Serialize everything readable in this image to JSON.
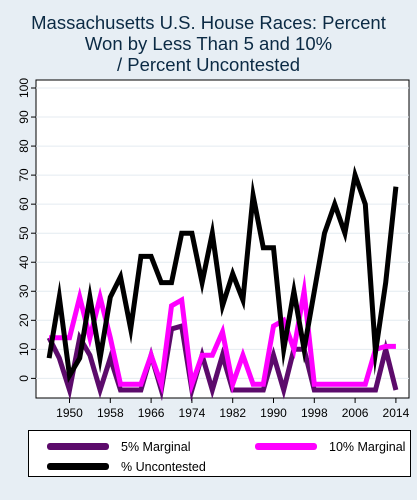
{
  "chart_data": {
    "type": "line",
    "title_lines": [
      "Massachusetts U.S. House Races: Percent",
      "Won by Less Than 5 and 10%",
      "/ Percent Uncontested"
    ],
    "xlabel": "",
    "ylabel": "",
    "x": [
      1946,
      1948,
      1950,
      1952,
      1954,
      1956,
      1958,
      1960,
      1962,
      1964,
      1966,
      1968,
      1970,
      1972,
      1974,
      1976,
      1978,
      1980,
      1982,
      1984,
      1986,
      1988,
      1990,
      1992,
      1994,
      1996,
      1998,
      2000,
      2002,
      2004,
      2006,
      2008,
      2010,
      2012,
      2014
    ],
    "x_ticks": [
      1950,
      1958,
      1966,
      1974,
      1982,
      1990,
      1998,
      2006,
      2014
    ],
    "y_ticks": [
      0,
      10,
      20,
      30,
      40,
      50,
      60,
      70,
      80,
      90,
      100
    ],
    "xlim": [
      1945,
      2015
    ],
    "ylim": [
      -4,
      100
    ],
    "grid": true,
    "legend_position": "bottom",
    "series": [
      {
        "name": "5% Marginal",
        "color": "#5c0b6b",
        "values": [
          14,
          7,
          -4,
          14,
          8,
          -4,
          7,
          -4,
          -4,
          -4,
          8,
          -4,
          17,
          18,
          -4,
          8,
          -4,
          8,
          -4,
          -4,
          -4,
          -4,
          8,
          -4,
          10,
          10,
          -4,
          -4,
          -4,
          -4,
          -4,
          -4,
          -4,
          10,
          -4
        ]
      },
      {
        "name": "10% Marginal",
        "color": "#ff00ff",
        "values": [
          14,
          14,
          14,
          28,
          14,
          28,
          14,
          -2,
          -2,
          -2,
          8,
          -2,
          25,
          27,
          -2,
          8,
          8,
          16,
          -2,
          8,
          -2,
          -2,
          18,
          20,
          10,
          30,
          -2,
          -2,
          -2,
          -2,
          -2,
          -2,
          10,
          11,
          11
        ]
      },
      {
        "name": "% Uncontested",
        "color": "#000000",
        "values": [
          7,
          28,
          1,
          7,
          28,
          7,
          28,
          35,
          17,
          42,
          42,
          33,
          33,
          50,
          50,
          33,
          50,
          25,
          36,
          27,
          63,
          45,
          45,
          10,
          30,
          10,
          30,
          50,
          60,
          50,
          70,
          60,
          9,
          33,
          66
        ]
      }
    ]
  }
}
